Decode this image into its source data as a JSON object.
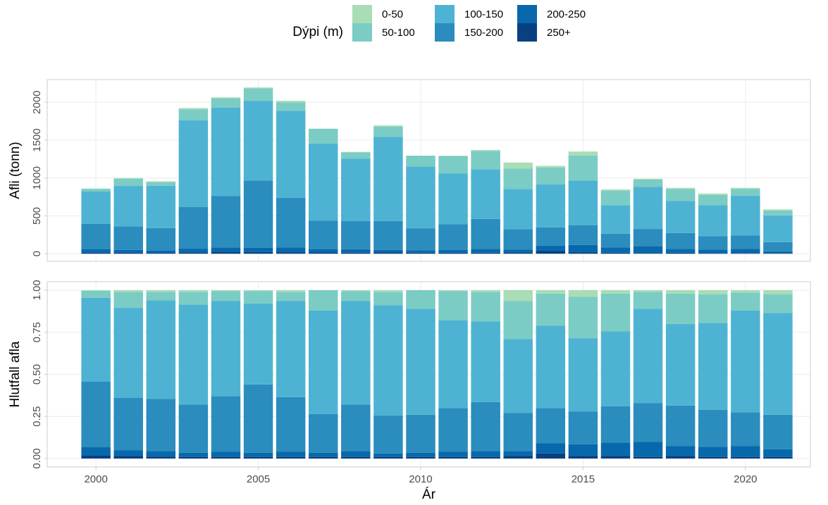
{
  "chart_data": [
    {
      "type": "bar",
      "stacked": true,
      "ylabel": "Afli (tonn)",
      "legend_title": "Dýpi (m)",
      "x": [
        2000,
        2001,
        2002,
        2003,
        2004,
        2005,
        2006,
        2007,
        2008,
        2009,
        2010,
        2011,
        2012,
        2013,
        2014,
        2015,
        2016,
        2017,
        2018,
        2019,
        2020,
        2021
      ],
      "xlim": [
        1998.5,
        2022
      ],
      "xticks": [
        2000,
        2005,
        2010,
        2015,
        2020
      ],
      "ylim": [
        -100,
        2300
      ],
      "yticks": [
        0,
        500,
        1000,
        1500,
        2000
      ],
      "grid": true,
      "series": [
        {
          "name": "250+",
          "color": "#084081",
          "values": [
            15,
            15,
            11,
            19,
            21,
            22,
            20,
            17,
            13,
            17,
            13,
            13,
            14,
            18,
            35,
            20,
            13,
            10,
            13,
            8,
            9,
            6
          ]
        },
        {
          "name": "200-250",
          "color": "#0868ac",
          "values": [
            43,
            35,
            32,
            48,
            62,
            55,
            61,
            41,
            47,
            34,
            32,
            39,
            48,
            36,
            70,
            95,
            68,
            89,
            52,
            48,
            57,
            26
          ]
        },
        {
          "name": "150-200",
          "color": "#2b8cbe",
          "values": [
            335,
            310,
            296,
            549,
            681,
            889,
            657,
            380,
            370,
            381,
            291,
            337,
            397,
            271,
            244,
            263,
            183,
            228,
            209,
            175,
            174,
            120
          ]
        },
        {
          "name": "100-150",
          "color": "#4eb3d3",
          "values": [
            428,
            535,
            559,
            1145,
            1167,
            1054,
            1151,
            1015,
            827,
            1110,
            816,
            673,
            658,
            530,
            568,
            587,
            378,
            554,
            422,
            409,
            526,
            354
          ]
        },
        {
          "name": "50-100",
          "color": "#7bccc4",
          "values": [
            36,
            95,
            48,
            144,
            124,
            165,
            111,
            198,
            81,
            136,
            143,
            227,
            240,
            271,
            220,
            331,
            191,
            99,
            157,
            135,
            91,
            64
          ]
        },
        {
          "name": "0-50",
          "color": "#a8ddb5",
          "values": [
            3,
            10,
            10,
            19,
            10,
            11,
            20,
            0,
            7,
            17,
            0,
            6,
            14,
            78,
            23,
            54,
            17,
            10,
            17,
            20,
            13,
            15
          ]
        }
      ]
    },
    {
      "type": "bar",
      "stacked": true,
      "ylabel": "Hlutfall afla",
      "xlabel": "Ár",
      "x": [
        2000,
        2001,
        2002,
        2003,
        2004,
        2005,
        2006,
        2007,
        2008,
        2009,
        2010,
        2011,
        2012,
        2013,
        2014,
        2015,
        2016,
        2017,
        2018,
        2019,
        2020,
        2021
      ],
      "xlim": [
        1998.5,
        2022
      ],
      "xticks": [
        2000,
        2005,
        2010,
        2015,
        2020
      ],
      "ylim": [
        -0.05,
        1.05
      ],
      "yticks": [
        {
          "value": 0,
          "label": "0.00"
        },
        {
          "value": 0.25,
          "label": "0.25"
        },
        {
          "value": 0.5,
          "label": "0.50"
        },
        {
          "value": 0.75,
          "label": "0.75"
        },
        {
          "value": 1,
          "label": "1.00"
        }
      ],
      "grid": true,
      "series": [
        {
          "values": [
            0.017,
            0.015,
            0.012,
            0.01,
            0.01,
            0.01,
            0.01,
            0.01,
            0.01,
            0.01,
            0.01,
            0.01,
            0.01,
            0.015,
            0.03,
            0.015,
            0.015,
            0.01,
            0.015,
            0.01,
            0.01,
            0.01
          ]
        },
        {
          "values": [
            0.05,
            0.035,
            0.033,
            0.025,
            0.03,
            0.025,
            0.03,
            0.025,
            0.035,
            0.02,
            0.025,
            0.03,
            0.035,
            0.03,
            0.06,
            0.07,
            0.08,
            0.09,
            0.06,
            0.06,
            0.065,
            0.045
          ]
        },
        {
          "values": [
            0.389,
            0.31,
            0.31,
            0.285,
            0.33,
            0.405,
            0.325,
            0.23,
            0.275,
            0.225,
            0.225,
            0.26,
            0.29,
            0.225,
            0.21,
            0.195,
            0.215,
            0.23,
            0.24,
            0.22,
            0.2,
            0.205
          ]
        },
        {
          "values": [
            0.498,
            0.535,
            0.585,
            0.595,
            0.565,
            0.48,
            0.57,
            0.615,
            0.615,
            0.655,
            0.63,
            0.52,
            0.48,
            0.44,
            0.49,
            0.435,
            0.445,
            0.56,
            0.485,
            0.515,
            0.605,
            0.605
          ]
        },
        {
          "values": [
            0.042,
            0.095,
            0.05,
            0.075,
            0.06,
            0.075,
            0.055,
            0.12,
            0.06,
            0.08,
            0.11,
            0.175,
            0.175,
            0.225,
            0.19,
            0.245,
            0.225,
            0.1,
            0.18,
            0.17,
            0.105,
            0.11
          ]
        },
        {
          "values": [
            0.004,
            0.01,
            0.01,
            0.01,
            0.005,
            0.005,
            0.01,
            0,
            0.005,
            0.01,
            0,
            0.005,
            0.01,
            0.065,
            0.02,
            0.04,
            0.02,
            0.01,
            0.02,
            0.025,
            0.015,
            0.025
          ]
        }
      ]
    }
  ]
}
